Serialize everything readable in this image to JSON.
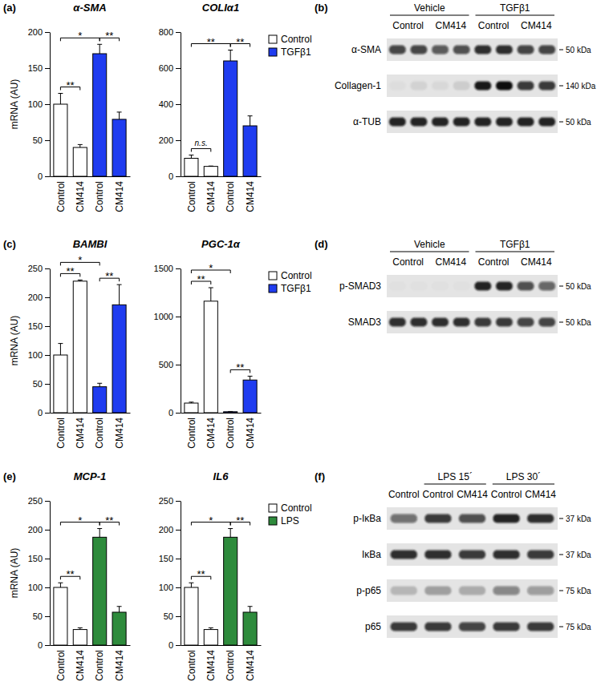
{
  "panel_labels": [
    "(a)",
    "(b)",
    "(c)",
    "(d)",
    "(e)",
    "(f)"
  ],
  "chart_data": [
    {
      "type": "bar",
      "title": "α-SMA",
      "ylabel": "mRNA (AU)",
      "categories": [
        "Control",
        "CM414",
        "Control",
        "CM414"
      ],
      "ylim": [
        0,
        200
      ],
      "yticks": [
        0,
        50,
        100,
        150,
        200
      ],
      "series": [
        {
          "color": "#ffffff",
          "values": [
            100,
            40,
            null,
            null
          ],
          "errors": [
            15,
            4,
            null,
            null
          ]
        },
        {
          "color": "#1f3cf0",
          "values": [
            null,
            null,
            170,
            79
          ],
          "errors": [
            null,
            null,
            13,
            10
          ]
        }
      ],
      "annotations": [
        {
          "from": 0,
          "to": 1,
          "label": "**"
        },
        {
          "from": 0,
          "to": 2,
          "label": "*"
        },
        {
          "from": 2,
          "to": 3,
          "label": "**"
        }
      ]
    },
    {
      "type": "bar",
      "title": "COLIα1",
      "legend": "right",
      "categories": [
        "Control",
        "CM414",
        "Control",
        "CM414"
      ],
      "ylim": [
        0,
        800
      ],
      "yticks": [
        0,
        200,
        400,
        600,
        800
      ],
      "series": [
        {
          "name": "Control",
          "color": "#ffffff",
          "values": [
            100,
            55,
            null,
            null
          ],
          "errors": [
            18,
            2,
            null,
            null
          ]
        },
        {
          "name": "TGFβ1",
          "color": "#1f3cf0",
          "values": [
            null,
            null,
            640,
            280
          ],
          "errors": [
            null,
            null,
            60,
            55
          ]
        }
      ],
      "annotations": [
        {
          "from": 0,
          "to": 1,
          "label": "n.s."
        },
        {
          "from": 0,
          "to": 2,
          "label": "**"
        },
        {
          "from": 2,
          "to": 3,
          "label": "**"
        }
      ]
    },
    {
      "type": "bar",
      "title": "BAMBI",
      "ylabel": "mRNA (AU)",
      "categories": [
        "Control",
        "CM414",
        "Control",
        "CM414"
      ],
      "ylim": [
        0,
        250
      ],
      "yticks": [
        0,
        50,
        100,
        150,
        200,
        250
      ],
      "series": [
        {
          "color": "#ffffff",
          "values": [
            100,
            228,
            null,
            null
          ],
          "errors": [
            20,
            2,
            null,
            null
          ]
        },
        {
          "color": "#1f3cf0",
          "values": [
            null,
            null,
            45,
            187
          ],
          "errors": [
            null,
            null,
            6,
            35
          ]
        }
      ],
      "annotations": [
        {
          "from": 0,
          "to": 1,
          "label": "**"
        },
        {
          "from": 0,
          "to": 2,
          "label": "*"
        },
        {
          "from": 2,
          "to": 3,
          "label": "**"
        }
      ]
    },
    {
      "type": "bar",
      "title": "PGC-1α",
      "legend": "right",
      "categories": [
        "Control",
        "CM414",
        "Control",
        "CM414"
      ],
      "ylim": [
        0,
        1500
      ],
      "yticks": [
        0,
        500,
        1000,
        1500
      ],
      "series": [
        {
          "name": "Control",
          "color": "#ffffff",
          "values": [
            100,
            1160,
            null,
            null
          ],
          "errors": [
            10,
            140,
            null,
            null
          ]
        },
        {
          "name": "TGFβ1",
          "color": "#1f3cf0",
          "values": [
            null,
            null,
            10,
            340
          ],
          "errors": [
            null,
            null,
            3,
            40
          ]
        }
      ],
      "annotations": [
        {
          "from": 0,
          "to": 1,
          "label": "**"
        },
        {
          "from": 0,
          "to": 2,
          "label": "*"
        },
        {
          "from": 2,
          "to": 3,
          "label": "**"
        }
      ]
    },
    {
      "type": "bar",
      "title": "MCP-1",
      "ylabel": "mRNA (AU)",
      "categories": [
        "Control",
        "CM414",
        "Control",
        "CM414"
      ],
      "ylim": [
        0,
        250
      ],
      "yticks": [
        0,
        50,
        100,
        150,
        200,
        250
      ],
      "series": [
        {
          "color": "#ffffff",
          "values": [
            100,
            27,
            null,
            null
          ],
          "errors": [
            8,
            3,
            null,
            null
          ]
        },
        {
          "color": "#2e8b3c",
          "values": [
            null,
            null,
            187,
            57
          ],
          "errors": [
            null,
            null,
            15,
            10
          ]
        }
      ],
      "annotations": [
        {
          "from": 0,
          "to": 1,
          "label": "**"
        },
        {
          "from": 0,
          "to": 2,
          "label": "*"
        },
        {
          "from": 2,
          "to": 3,
          "label": "**"
        }
      ]
    },
    {
      "type": "bar",
      "title": "IL6",
      "legend": "right",
      "categories": [
        "Control",
        "CM414",
        "Control",
        "CM414"
      ],
      "ylim": [
        0,
        250
      ],
      "yticks": [
        0,
        50,
        100,
        150,
        200,
        250
      ],
      "series": [
        {
          "name": "Control",
          "color": "#ffffff",
          "values": [
            100,
            27,
            null,
            null
          ],
          "errors": [
            8,
            3,
            null,
            null
          ]
        },
        {
          "name": "LPS",
          "color": "#2e8b3c",
          "values": [
            null,
            null,
            187,
            57
          ],
          "errors": [
            null,
            null,
            15,
            10
          ]
        }
      ],
      "annotations": [
        {
          "from": 0,
          "to": 1,
          "label": "**"
        },
        {
          "from": 0,
          "to": 2,
          "label": "*"
        },
        {
          "from": 2,
          "to": 3,
          "label": "**"
        }
      ]
    }
  ],
  "blots": [
    {
      "groups": [
        {
          "label": "Vehicle",
          "start": 0,
          "span": 4
        },
        {
          "label": "TGFβ1",
          "start": 4,
          "span": 4
        }
      ],
      "lane_labels": [
        {
          "label": "Control",
          "start": 0,
          "span": 2
        },
        {
          "label": "CM414",
          "start": 2,
          "span": 2
        },
        {
          "label": "Control",
          "start": 4,
          "span": 2
        },
        {
          "label": "CM414",
          "start": 6,
          "span": 2
        }
      ],
      "rows": [
        {
          "label": "α-SMA",
          "size": "50 kDa",
          "intensity": [
            0.75,
            0.75,
            0.65,
            0.7,
            0.85,
            0.85,
            0.75,
            0.75
          ]
        },
        {
          "label": "Collagen-1",
          "size": "140 kDa",
          "intensity": [
            0.03,
            0.08,
            0.05,
            0.1,
            0.95,
            1.0,
            0.8,
            0.8
          ]
        },
        {
          "label": "α-TUB",
          "size": "50 kDa",
          "intensity": [
            0.9,
            0.9,
            0.9,
            0.9,
            0.9,
            0.9,
            0.9,
            0.9
          ]
        }
      ]
    },
    {
      "groups": [
        {
          "label": "Vehicle",
          "start": 0,
          "span": 4
        },
        {
          "label": "TGFβ1",
          "start": 4,
          "span": 4
        }
      ],
      "lane_labels": [
        {
          "label": "Control",
          "start": 0,
          "span": 2
        },
        {
          "label": "CM414",
          "start": 2,
          "span": 2
        },
        {
          "label": "Control",
          "start": 4,
          "span": 2
        },
        {
          "label": "CM414",
          "start": 6,
          "span": 2
        }
      ],
      "rows": [
        {
          "label": "p-SMAD3",
          "size": "50 kDa",
          "intensity": [
            0.02,
            0.02,
            0.02,
            0.02,
            0.9,
            0.9,
            0.7,
            0.6
          ]
        },
        {
          "label": "SMAD3",
          "size": "50 kDa",
          "intensity": [
            0.85,
            0.85,
            0.85,
            0.85,
            0.8,
            0.8,
            0.75,
            0.75
          ]
        }
      ]
    },
    {
      "groups": [
        {
          "label": "LPS 15´",
          "start": 1,
          "span": 2
        },
        {
          "label": "LPS 30´",
          "start": 3,
          "span": 2
        }
      ],
      "lane_labels": [
        {
          "label": "Control",
          "start": 0,
          "span": 1
        },
        {
          "label": "Control",
          "start": 1,
          "span": 1
        },
        {
          "label": "CM414",
          "start": 2,
          "span": 1
        },
        {
          "label": "Control",
          "start": 3,
          "span": 1
        },
        {
          "label": "CM414",
          "start": 4,
          "span": 1
        }
      ],
      "rows": [
        {
          "label": "p-IκBa",
          "size": "37 kDa",
          "intensity": [
            0.55,
            0.8,
            0.7,
            0.9,
            0.85
          ]
        },
        {
          "label": "IκBa",
          "size": "37 kDa",
          "intensity": [
            0.85,
            0.85,
            0.8,
            0.85,
            0.8
          ]
        },
        {
          "label": "p-p65",
          "size": "75 kDa",
          "intensity": [
            0.2,
            0.3,
            0.25,
            0.45,
            0.35
          ]
        },
        {
          "label": "p65",
          "size": "75 kDa",
          "intensity": [
            0.8,
            0.8,
            0.75,
            0.8,
            0.8
          ]
        }
      ]
    }
  ]
}
